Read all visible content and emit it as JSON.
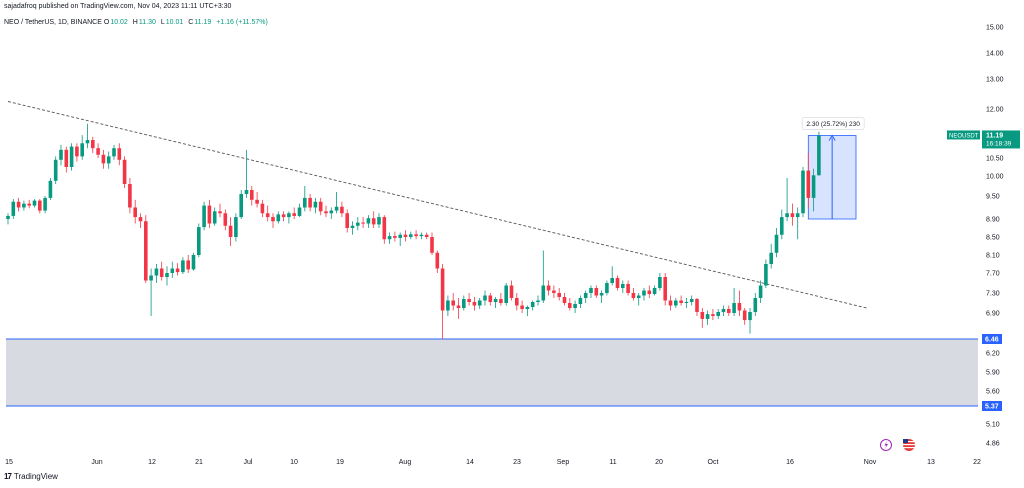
{
  "header": {
    "published": "sajadafroq published on TradingView.com, Nov 04, 2023 11:11 UTC+3:30",
    "symbol": "NEO / TetherUS, 1D, BINANCE",
    "ohlc": [
      {
        "label": "O",
        "value": "10.02"
      },
      {
        "label": "H",
        "value": "11.30"
      },
      {
        "label": "L",
        "value": "10.01"
      },
      {
        "label": "C",
        "value": "11.19"
      }
    ],
    "change": "+1.16 (+11.57%)"
  },
  "price_axis": {
    "ticks": [
      "15.00",
      "14.00",
      "13.00",
      "12.00",
      "10.50",
      "10.00",
      "9.50",
      "8.90",
      "8.50",
      "8.10",
      "7.70",
      "7.30",
      "6.90",
      "6.20",
      "5.90",
      "5.60",
      "5.10",
      "4.86"
    ],
    "badges": [
      {
        "text": "11.19",
        "sub": "16:18:39",
        "color": "#089981"
      },
      {
        "text": "6.46",
        "color": "#2962ff"
      },
      {
        "text": "5.37",
        "color": "#2962ff"
      }
    ],
    "symbol_tag": "NEOUSDT"
  },
  "time_axis": {
    "ticks": [
      "15",
      "Jun",
      "12",
      "21",
      "Jul",
      "10",
      "19",
      "Aug",
      "14",
      "23",
      "Sep",
      "11",
      "20",
      "Oct",
      "16",
      "Nov",
      "13",
      "22"
    ]
  },
  "measure_label": "2.30 (25.72%) 230",
  "footer": {
    "brand": "TradingView"
  },
  "colors": {
    "up": "#089981",
    "down": "#f23645",
    "zone": "#d1d4dc",
    "zone_line": "#2962ff",
    "measure": "#2962ff"
  },
  "chart_data": {
    "type": "candlestick",
    "timeframe": "1D",
    "y_range": [
      4.8,
      15.3
    ],
    "support_zone": [
      5.37,
      6.46
    ],
    "trendline": {
      "from": {
        "day": 0,
        "price": 12.25
      },
      "to": {
        "day": 162,
        "price": 7.0
      }
    },
    "measure": {
      "from_price": 8.9,
      "to_price": 11.19,
      "label": "2.30 (25.72%) 230"
    },
    "last_price": 11.19,
    "candles": [
      [
        8.9,
        9.05,
        8.78,
        8.98
      ],
      [
        8.98,
        9.42,
        8.9,
        9.35
      ],
      [
        9.35,
        9.45,
        9.1,
        9.2
      ],
      [
        9.2,
        9.38,
        9.12,
        9.3
      ],
      [
        9.3,
        9.4,
        9.18,
        9.25
      ],
      [
        9.25,
        9.42,
        9.2,
        9.38
      ],
      [
        9.38,
        9.42,
        9.05,
        9.12
      ],
      [
        9.12,
        9.5,
        9.05,
        9.45
      ],
      [
        9.45,
        9.95,
        9.4,
        9.88
      ],
      [
        9.88,
        10.55,
        9.8,
        10.45
      ],
      [
        10.45,
        10.9,
        10.3,
        10.75
      ],
      [
        10.75,
        10.85,
        10.1,
        10.25
      ],
      [
        10.25,
        10.95,
        10.15,
        10.85
      ],
      [
        10.85,
        10.95,
        10.4,
        10.55
      ],
      [
        10.55,
        11.2,
        10.45,
        10.95
      ],
      [
        10.95,
        11.55,
        10.8,
        11.05
      ],
      [
        11.05,
        11.15,
        10.65,
        10.8
      ],
      [
        10.8,
        10.95,
        10.5,
        10.6
      ],
      [
        10.6,
        10.75,
        10.2,
        10.35
      ],
      [
        10.35,
        10.7,
        10.2,
        10.55
      ],
      [
        10.55,
        10.9,
        10.45,
        10.8
      ],
      [
        10.8,
        10.95,
        10.3,
        10.45
      ],
      [
        10.45,
        10.55,
        9.7,
        9.8
      ],
      [
        9.8,
        9.95,
        9.05,
        9.2
      ],
      [
        9.2,
        9.4,
        8.8,
        8.95
      ],
      [
        8.95,
        9.05,
        8.7,
        8.85
      ],
      [
        8.85,
        9.0,
        7.5,
        7.55
      ],
      [
        7.55,
        7.8,
        6.85,
        7.65
      ],
      [
        7.65,
        7.9,
        7.5,
        7.8
      ],
      [
        7.8,
        7.95,
        7.55,
        7.62
      ],
      [
        7.62,
        7.85,
        7.45,
        7.7
      ],
      [
        7.7,
        7.95,
        7.6,
        7.8
      ],
      [
        7.8,
        7.92,
        7.65,
        7.72
      ],
      [
        7.72,
        8.05,
        7.68,
        7.98
      ],
      [
        7.98,
        8.1,
        7.7,
        7.78
      ],
      [
        7.78,
        8.15,
        7.75,
        8.1
      ],
      [
        8.1,
        8.8,
        8.05,
        8.72
      ],
      [
        8.72,
        9.35,
        8.65,
        9.25
      ],
      [
        9.25,
        9.4,
        8.7,
        8.8
      ],
      [
        8.8,
        9.2,
        8.75,
        9.1
      ],
      [
        9.1,
        9.3,
        8.95,
        9.05
      ],
      [
        9.05,
        9.15,
        8.65,
        8.75
      ],
      [
        8.75,
        8.95,
        8.3,
        8.5
      ],
      [
        8.5,
        9.05,
        8.4,
        8.95
      ],
      [
        8.95,
        9.65,
        8.9,
        9.55
      ],
      [
        9.55,
        10.75,
        9.45,
        9.65
      ],
      [
        9.65,
        9.75,
        9.25,
        9.4
      ],
      [
        9.4,
        9.6,
        9.2,
        9.3
      ],
      [
        9.3,
        9.4,
        8.95,
        9.05
      ],
      [
        9.05,
        9.25,
        8.85,
        8.95
      ],
      [
        8.95,
        9.05,
        8.7,
        8.85
      ],
      [
        8.85,
        9.1,
        8.8,
        9.02
      ],
      [
        9.02,
        9.1,
        8.85,
        8.95
      ],
      [
        8.95,
        9.1,
        8.8,
        9.05
      ],
      [
        9.05,
        9.2,
        8.9,
        8.98
      ],
      [
        8.98,
        9.3,
        8.95,
        9.2
      ],
      [
        9.2,
        9.75,
        9.1,
        9.45
      ],
      [
        9.45,
        9.55,
        9.1,
        9.2
      ],
      [
        9.2,
        9.45,
        9.05,
        9.35
      ],
      [
        9.35,
        9.45,
        9.0,
        9.1
      ],
      [
        9.1,
        9.25,
        8.95,
        9.05
      ],
      [
        9.05,
        9.2,
        8.9,
        9.12
      ],
      [
        9.12,
        9.6,
        9.05,
        9.22
      ],
      [
        9.22,
        9.35,
        8.95,
        9.05
      ],
      [
        9.05,
        9.15,
        8.6,
        8.7
      ],
      [
        8.7,
        8.85,
        8.55,
        8.75
      ],
      [
        8.75,
        8.95,
        8.65,
        8.82
      ],
      [
        8.82,
        8.95,
        8.7,
        8.8
      ],
      [
        8.8,
        9.0,
        8.7,
        8.92
      ],
      [
        8.92,
        9.1,
        8.7,
        8.78
      ],
      [
        8.78,
        9.05,
        8.7,
        8.95
      ],
      [
        8.95,
        9.0,
        8.35,
        8.45
      ],
      [
        8.45,
        8.6,
        8.35,
        8.52
      ],
      [
        8.52,
        8.62,
        8.4,
        8.48
      ],
      [
        8.48,
        8.6,
        8.3,
        8.55
      ],
      [
        8.55,
        8.65,
        8.4,
        8.5
      ],
      [
        8.5,
        8.62,
        8.45,
        8.56
      ],
      [
        8.56,
        8.65,
        8.45,
        8.52
      ],
      [
        8.52,
        8.6,
        8.45,
        8.55
      ],
      [
        8.55,
        8.6,
        8.45,
        8.5
      ],
      [
        8.5,
        8.6,
        8.1,
        8.15
      ],
      [
        8.15,
        8.2,
        7.7,
        7.8
      ],
      [
        7.8,
        7.9,
        6.45,
        6.95
      ],
      [
        6.95,
        7.25,
        6.85,
        7.15
      ],
      [
        7.15,
        7.3,
        6.95,
        7.05
      ],
      [
        7.05,
        7.2,
        6.8,
        7.0
      ],
      [
        7.0,
        7.25,
        6.95,
        7.18
      ],
      [
        7.18,
        7.3,
        7.05,
        7.12
      ],
      [
        7.12,
        7.22,
        6.95,
        7.05
      ],
      [
        7.05,
        7.2,
        6.98,
        7.15
      ],
      [
        7.15,
        7.35,
        7.05,
        7.25
      ],
      [
        7.25,
        7.3,
        7.05,
        7.12
      ],
      [
        7.12,
        7.22,
        7.0,
        7.18
      ],
      [
        7.18,
        7.3,
        7.05,
        7.1
      ],
      [
        7.1,
        7.5,
        7.05,
        7.45
      ],
      [
        7.45,
        7.55,
        7.15,
        7.2
      ],
      [
        7.2,
        7.3,
        6.95,
        7.05
      ],
      [
        7.05,
        7.15,
        6.9,
        6.98
      ],
      [
        6.98,
        7.05,
        6.85,
        7.02
      ],
      [
        7.02,
        7.15,
        6.95,
        7.12
      ],
      [
        7.12,
        7.25,
        7.05,
        7.15
      ],
      [
        7.15,
        8.2,
        7.1,
        7.45
      ],
      [
        7.45,
        7.55,
        7.25,
        7.35
      ],
      [
        7.35,
        7.45,
        7.2,
        7.3
      ],
      [
        7.3,
        7.4,
        7.15,
        7.22
      ],
      [
        7.22,
        7.3,
        7.05,
        7.1
      ],
      [
        7.1,
        7.2,
        6.95,
        7.0
      ],
      [
        7.0,
        7.15,
        6.9,
        7.08
      ],
      [
        7.08,
        7.25,
        7.0,
        7.2
      ],
      [
        7.2,
        7.35,
        7.1,
        7.3
      ],
      [
        7.3,
        7.45,
        7.2,
        7.4
      ],
      [
        7.4,
        7.45,
        7.2,
        7.25
      ],
      [
        7.25,
        7.35,
        7.1,
        7.3
      ],
      [
        7.3,
        7.55,
        7.25,
        7.5
      ],
      [
        7.5,
        7.85,
        7.45,
        7.6
      ],
      [
        7.6,
        7.65,
        7.35,
        7.4
      ],
      [
        7.4,
        7.55,
        7.3,
        7.48
      ],
      [
        7.48,
        7.55,
        7.25,
        7.3
      ],
      [
        7.3,
        7.4,
        7.15,
        7.2
      ],
      [
        7.2,
        7.3,
        7.05,
        7.25
      ],
      [
        7.25,
        7.4,
        7.15,
        7.35
      ],
      [
        7.35,
        7.45,
        7.2,
        7.28
      ],
      [
        7.28,
        7.45,
        7.25,
        7.4
      ],
      [
        7.4,
        7.7,
        7.35,
        7.62
      ],
      [
        7.62,
        7.7,
        7.05,
        7.15
      ],
      [
        7.15,
        7.25,
        6.95,
        7.05
      ],
      [
        7.05,
        7.2,
        7.0,
        7.15
      ],
      [
        7.15,
        7.25,
        7.05,
        7.1
      ],
      [
        7.1,
        7.2,
        7.0,
        7.12
      ],
      [
        7.12,
        7.25,
        7.05,
        7.18
      ],
      [
        7.18,
        7.2,
        6.85,
        6.92
      ],
      [
        6.92,
        7.0,
        6.65,
        6.8
      ],
      [
        6.8,
        6.95,
        6.7,
        6.88
      ],
      [
        6.88,
        6.98,
        6.78,
        6.85
      ],
      [
        6.85,
        6.98,
        6.8,
        6.92
      ],
      [
        6.92,
        7.05,
        6.85,
        6.98
      ],
      [
        6.98,
        7.05,
        6.85,
        6.9
      ],
      [
        6.9,
        7.4,
        6.85,
        7.1
      ],
      [
        7.1,
        7.35,
        6.85,
        6.95
      ],
      [
        6.95,
        7.0,
        6.7,
        6.78
      ],
      [
        6.78,
        7.0,
        6.55,
        6.92
      ],
      [
        6.92,
        7.3,
        6.85,
        7.2
      ],
      [
        7.2,
        7.55,
        7.1,
        7.45
      ],
      [
        7.45,
        8.0,
        7.4,
        7.9
      ],
      [
        7.9,
        8.35,
        7.8,
        8.15
      ],
      [
        8.15,
        8.7,
        8.05,
        8.55
      ],
      [
        8.55,
        9.15,
        8.45,
        8.95
      ],
      [
        8.95,
        9.95,
        8.85,
        9.05
      ],
      [
        9.05,
        9.3,
        8.75,
        8.95
      ],
      [
        8.95,
        9.2,
        8.45,
        9.05
      ],
      [
        9.05,
        10.25,
        8.95,
        10.15
      ],
      [
        10.15,
        10.65,
        9.2,
        9.45
      ],
      [
        9.45,
        10.2,
        9.1,
        10.02
      ],
      [
        10.02,
        11.3,
        10.01,
        11.19
      ]
    ]
  }
}
